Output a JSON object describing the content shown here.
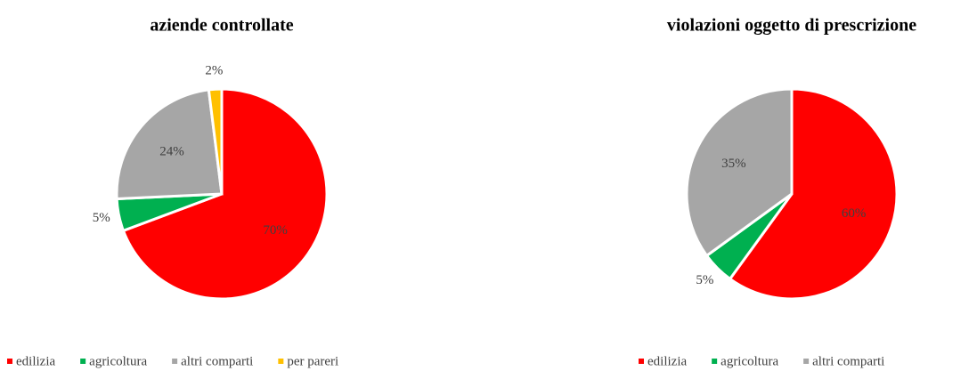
{
  "chart_data": [
    {
      "type": "pie",
      "title": "aziende controllate",
      "categories": [
        "edilizia",
        "agricoltura",
        "altri comparti",
        "per pareri"
      ],
      "values": [
        70,
        5,
        24,
        2
      ],
      "value_labels": [
        "70%",
        "5%",
        "24%",
        "2%"
      ],
      "colors": [
        "#ff0000",
        "#00b050",
        "#a6a6a6",
        "#ffc000"
      ],
      "legend": "bottom"
    },
    {
      "type": "pie",
      "title": "violazioni oggetto di prescrizione",
      "categories": [
        "edilizia",
        "agricoltura",
        "altri comparti"
      ],
      "values": [
        60,
        5,
        35
      ],
      "value_labels": [
        "60%",
        "5%",
        "35%"
      ],
      "colors": [
        "#ff0000",
        "#00b050",
        "#a6a6a6"
      ],
      "legend": "bottom"
    }
  ]
}
